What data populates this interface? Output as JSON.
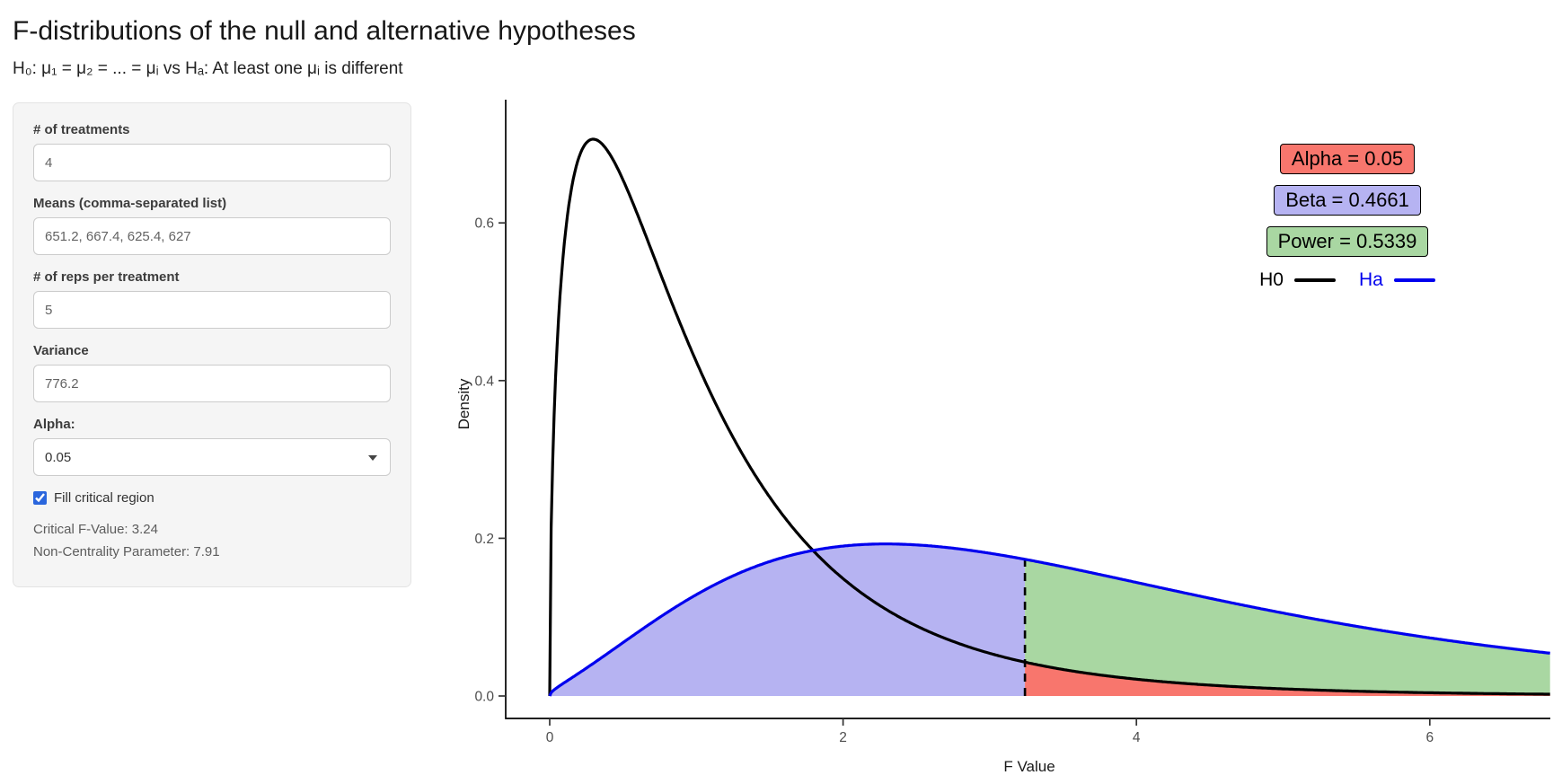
{
  "header": {
    "title": "F-distributions of the null and alternative hypotheses",
    "subtitle": "H₀: μ₁ = μ₂ = ... = μᵢ vs Hₐ: At least one μᵢ is different"
  },
  "sidebar": {
    "fields": [
      {
        "label": "# of treatments",
        "value": "4"
      },
      {
        "label": "Means (comma-separated list)",
        "value": "651.2, 667.4, 625.4, 627"
      },
      {
        "label": "# of reps per treatment",
        "value": "5"
      },
      {
        "label": "Variance",
        "value": "776.2"
      }
    ],
    "alpha_select": {
      "label": "Alpha:",
      "value": "0.05"
    },
    "fill_checkbox": {
      "label": "Fill critical region",
      "checked": true
    },
    "critical_f_text": "Critical F-Value: 3.24",
    "ncp_text": "Non-Centrality Parameter: 7.91"
  },
  "chart_data": {
    "type": "line",
    "title": "",
    "xlabel": "F Value",
    "ylabel": "Density",
    "x_ticks": [
      0,
      2,
      4,
      6
    ],
    "y_ticks": [
      0,
      0.2,
      0.4,
      0.6
    ],
    "xlim": [
      0,
      6.82
    ],
    "ylim": [
      0,
      0.76
    ],
    "grid": false,
    "legend_position": "top-right",
    "critical_f": 3.24,
    "distributions": {
      "h0": {
        "label": "H0",
        "df1": 3,
        "df2": 16,
        "ncp": 0,
        "color": "#000000",
        "peak_density": 0.71
      },
      "ha": {
        "label": "Ha",
        "df1": 3,
        "df2": 16,
        "ncp": 7.91,
        "color": "#0000ee",
        "peak_density": 0.19
      }
    },
    "regions": {
      "alpha": {
        "label": "Alpha = 0.05",
        "value": 0.05,
        "color": "#f8766d"
      },
      "beta": {
        "label": "Beta = 0.4661",
        "value": 0.4661,
        "color": "#b6b3f2"
      },
      "power": {
        "label": "Power = 0.5339",
        "value": 0.5339,
        "color": "#a9d7a2"
      }
    }
  }
}
